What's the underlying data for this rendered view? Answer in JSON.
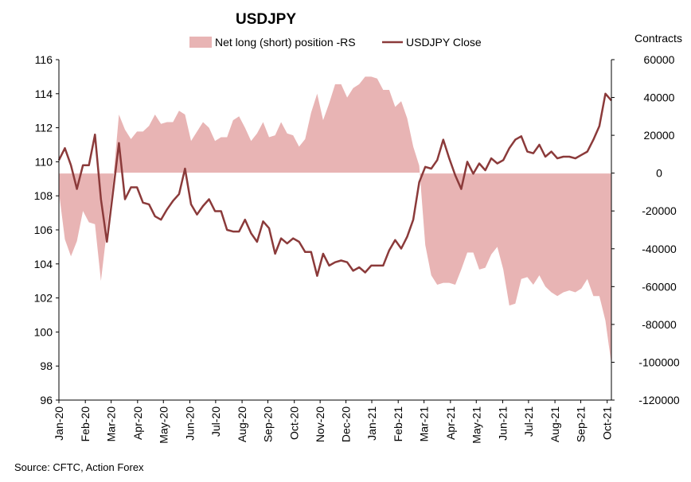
{
  "chart_data": {
    "type": "line",
    "title": "USDJPY",
    "source": "Source: CFTC, Action Forex",
    "y2label": "Contracts",
    "ylim": [
      96,
      116
    ],
    "yticks": [
      96,
      98,
      100,
      102,
      104,
      106,
      108,
      110,
      112,
      114,
      116
    ],
    "y2lim": [
      -120000,
      60000
    ],
    "y2ticks": [
      -120000,
      -100000,
      -80000,
      -60000,
      -40000,
      -20000,
      0,
      20000,
      40000,
      60000
    ],
    "x_index_range": [
      0,
      92
    ],
    "x_tick_labels": [
      "Jan-20",
      "Feb-20",
      "Mar-20",
      "Apr-20",
      "May-20",
      "Jun-20",
      "Jul-20",
      "Aug-20",
      "Sep-20",
      "Oct-20",
      "Nov-20",
      "Dec-20",
      "Jan-21",
      "Feb-21",
      "Mar-21",
      "Apr-21",
      "May-21",
      "Jun-21",
      "Jul-21",
      "Aug-21",
      "Sep-21",
      "Oct-21"
    ],
    "x_tick_index": [
      0,
      4.4,
      8.7,
      13.1,
      17.4,
      21.8,
      26.1,
      30.5,
      34.8,
      39.2,
      43.5,
      47.8,
      52.1,
      56.5,
      60.8,
      65.2,
      69.5,
      73.9,
      78.2,
      82.6,
      86.9,
      91.3
    ],
    "series": [
      {
        "name": "Net long (short) position -RS",
        "type": "area",
        "axis": "right",
        "color": "#e8b4b4",
        "x": [
          0,
          1,
          2,
          3,
          4,
          5,
          6,
          7,
          8,
          9,
          10,
          11,
          12,
          13,
          14,
          15,
          16,
          17,
          18,
          19,
          20,
          21,
          22,
          23,
          24,
          25,
          26,
          27,
          28,
          29,
          30,
          31,
          32,
          33,
          34,
          35,
          36,
          37,
          38,
          39,
          40,
          41,
          42,
          43,
          44,
          45,
          46,
          47,
          48,
          49,
          50,
          51,
          52,
          53,
          54,
          55,
          56,
          57,
          58,
          59,
          60,
          61,
          62,
          63,
          64,
          65,
          66,
          67,
          68,
          69,
          70,
          71,
          72,
          73,
          74,
          75,
          76,
          77,
          78,
          79,
          80,
          81,
          82,
          83,
          84,
          85,
          86,
          87,
          88,
          89,
          90,
          91,
          92
        ],
        "values": [
          -10000,
          -35000,
          -44000,
          -36000,
          -20000,
          -26000,
          -27000,
          -57000,
          -30000,
          -5000,
          31000,
          23000,
          18000,
          22000,
          22000,
          25000,
          31000,
          26000,
          27000,
          27000,
          33000,
          31000,
          17000,
          22000,
          27000,
          24000,
          17000,
          19000,
          19000,
          28000,
          30000,
          24000,
          17000,
          21000,
          27000,
          19000,
          20000,
          27000,
          21000,
          20000,
          14000,
          18000,
          32000,
          42000,
          28000,
          37000,
          47000,
          47000,
          40000,
          45000,
          47000,
          51000,
          51000,
          50000,
          44000,
          44000,
          35000,
          38000,
          29000,
          14000,
          4000,
          -38000,
          -54000,
          -59000,
          -58000,
          -58000,
          -59000,
          -51000,
          -42000,
          -42000,
          -51000,
          -50000,
          -43000,
          -39000,
          -51000,
          -70000,
          -69000,
          -56000,
          -55000,
          -59000,
          -54000,
          -60000,
          -63000,
          -65000,
          -63000,
          -62000,
          -63000,
          -61000,
          -56000,
          -65000,
          -65000,
          -78000,
          -101000
        ]
      },
      {
        "name": "USDJPY Close",
        "type": "line",
        "axis": "left",
        "color": "#8b3a3a",
        "x": [
          0,
          1,
          2,
          3,
          4,
          5,
          6,
          7,
          8,
          9,
          10,
          11,
          12,
          13,
          14,
          15,
          16,
          17,
          18,
          19,
          20,
          21,
          22,
          23,
          24,
          25,
          26,
          27,
          28,
          29,
          30,
          31,
          32,
          33,
          34,
          35,
          36,
          37,
          38,
          39,
          40,
          41,
          42,
          43,
          44,
          45,
          46,
          47,
          48,
          49,
          50,
          51,
          52,
          53,
          54,
          55,
          56,
          57,
          58,
          59,
          60,
          61,
          62,
          63,
          64,
          65,
          66,
          67,
          68,
          69,
          70,
          71,
          72,
          73,
          74,
          75,
          76,
          77,
          78,
          79,
          80,
          81,
          82,
          83,
          84,
          85,
          86,
          87,
          88,
          89,
          90,
          91,
          92
        ],
        "values": [
          110.1,
          110.8,
          109.8,
          108.4,
          109.8,
          109.8,
          111.6,
          107.8,
          105.3,
          108.2,
          111.1,
          107.8,
          108.5,
          108.5,
          107.6,
          107.5,
          106.8,
          106.6,
          107.2,
          107.7,
          108.1,
          109.6,
          107.5,
          106.9,
          107.4,
          107.8,
          107.1,
          107.1,
          106.0,
          105.9,
          105.9,
          106.6,
          105.8,
          105.3,
          106.5,
          106.1,
          104.6,
          105.5,
          105.2,
          105.5,
          105.3,
          104.7,
          104.7,
          103.3,
          104.6,
          103.9,
          104.1,
          104.2,
          104.1,
          103.6,
          103.8,
          103.5,
          103.9,
          103.9,
          103.9,
          104.8,
          105.4,
          104.9,
          105.6,
          106.6,
          108.8,
          109.7,
          109.6,
          110.1,
          111.3,
          110.2,
          109.2,
          108.4,
          110.0,
          109.3,
          109.9,
          109.5,
          110.2,
          109.9,
          110.1,
          110.8,
          111.3,
          111.5,
          110.6,
          110.5,
          111.0,
          110.3,
          110.6,
          110.2,
          110.3,
          110.3,
          110.2,
          110.4,
          110.6,
          111.3,
          112.1,
          114.0,
          113.6
        ]
      }
    ],
    "legend": {
      "placement": "top-center"
    }
  }
}
